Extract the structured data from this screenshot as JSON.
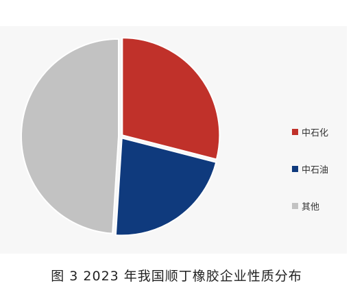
{
  "caption": "图 3  2023 年我国顺丁橡胶企业性质分布",
  "chart_data": {
    "type": "pie",
    "title": "",
    "slices": [
      {
        "label": "中石化",
        "value": 29,
        "color": "#c0312a"
      },
      {
        "label": "中石油",
        "value": 22,
        "color": "#0f3a7d"
      },
      {
        "label": "其他",
        "value": 49,
        "color": "#c2c2c2"
      }
    ],
    "legend_position": "right"
  }
}
